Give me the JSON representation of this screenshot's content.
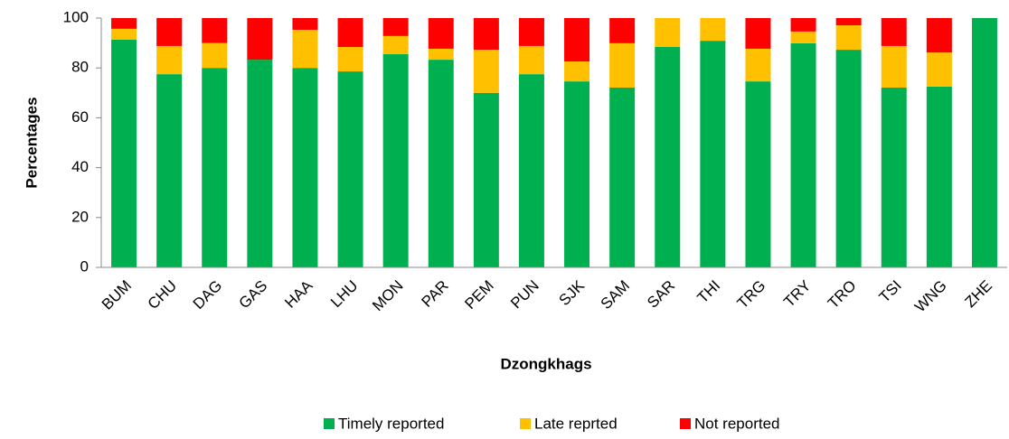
{
  "chart_data": {
    "type": "stacked_bar",
    "x_label": "Dzongkhags",
    "y_label": "Percentages",
    "categories": [
      "BUM",
      "CHU",
      "DAG",
      "GAS",
      "HAA",
      "LHU",
      "MON",
      "PAR",
      "PEM",
      "PUN",
      "SJK",
      "SAM",
      "SAR",
      "THI",
      "TRG",
      "TRY",
      "TRO",
      "TSI",
      "WNG",
      "ZHE"
    ],
    "series": [
      {
        "name": "Timely reported",
        "color": "#00b050",
        "values": [
          91.3,
          77.5,
          80,
          83.3,
          80,
          78.6,
          85.5,
          83.3,
          70,
          77.5,
          74.6,
          72.1,
          88.4,
          90.9,
          74.6,
          89.9,
          87.3,
          72.1,
          72.5,
          100
        ]
      },
      {
        "name": "Late reprted",
        "color": "#ffc000",
        "values": [
          4.4,
          11.3,
          10,
          0,
          15.3,
          9.8,
          7.3,
          4.4,
          17.3,
          11.3,
          8,
          17.8,
          11.6,
          9.1,
          13.1,
          4.7,
          9.8,
          16.7,
          13.7,
          0
        ]
      },
      {
        "name": "Not reported",
        "color": "#ff0000",
        "values": [
          4.3,
          11.2,
          10,
          16.7,
          4.7,
          11.6,
          7.2,
          12.3,
          12.7,
          11.2,
          17.4,
          10.1,
          0,
          0,
          12.3,
          5.4,
          2.9,
          11.2,
          13.8,
          0
        ]
      }
    ],
    "ylim": [
      0,
      100
    ],
    "yticks": [
      0,
      20,
      40,
      60,
      80,
      100
    ],
    "legend": "bottom"
  }
}
